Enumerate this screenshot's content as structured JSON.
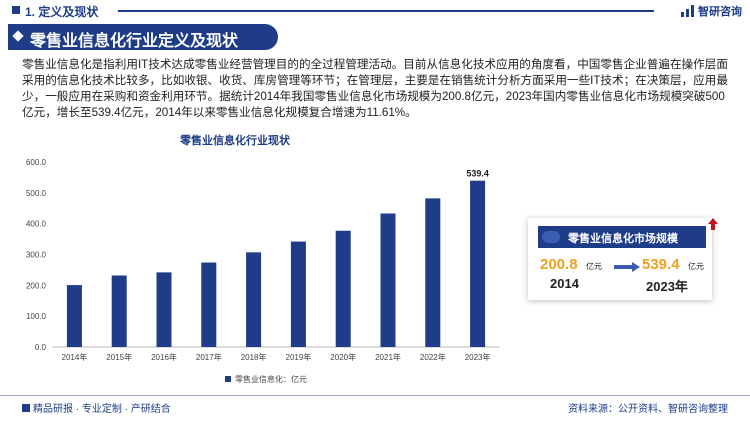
{
  "header": {
    "section": "1. 定义及现状",
    "brand": "智研咨询"
  },
  "title": "零售业信息化行业定义及现状",
  "paragraph": "零售业信息化是指利用IT技术达成零售业经营管理目的的全过程管理活动。目前从信息化技术应用的角度看，中国零售企业普遍在操作层面采用的信息化技术比较多，比如收银、收货、库房管理等环节；在管理层，主要是在销售统计分析方面采用一些IT技术；在决策层，应用最少，一般应用在采购和资金利用环节。据统计2014年我国零售业信息化市场规模为200.8亿元，2023年国内零售业信息化市场规模突破500亿元，增长至539.4亿元，2014年以来零售业信息化规模复合增速为11.61%。",
  "chart_data": {
    "type": "bar",
    "title": "零售业信息化行业现状",
    "categories": [
      "2014年",
      "2015年",
      "2016年",
      "2017年",
      "2018年",
      "2019年",
      "2020年",
      "2021年",
      "2022年",
      "2023年"
    ],
    "series": [
      {
        "name": "零售业信息化：亿元",
        "values": [
          200.8,
          232,
          242,
          274,
          307,
          342,
          377,
          433,
          482,
          539.4
        ],
        "color": "#1f3c88"
      }
    ],
    "y_ticks": [
      "0.0",
      "100.0",
      "200.0",
      "300.0",
      "400.0",
      "500.0",
      "600.0"
    ],
    "ylim": [
      0,
      600
    ],
    "labeled_value": "539.4",
    "grid": false,
    "legend": "bottom"
  },
  "card": {
    "title": "零售业信息化市场规模",
    "value1": "200.8",
    "unit1": "亿元",
    "year1": "2014",
    "value2": "539.4",
    "unit2": "亿元",
    "year2": "2023年"
  },
  "footer": {
    "slogan": "精品研报 · 专业定制 · 产研结合",
    "source": "资料来源：公开资料、智研咨询整理"
  }
}
